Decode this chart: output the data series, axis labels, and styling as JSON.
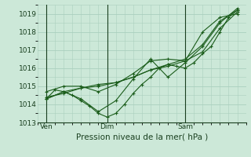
{
  "xlabel": "Pression niveau de la mer( hPa )",
  "bg_color": "#cce8d8",
  "grid_color": "#aacfbe",
  "line_color": "#1a5c1a",
  "dark_line_color": "#1a4020",
  "ylim": [
    1013.0,
    1019.5
  ],
  "yticks": [
    1013,
    1014,
    1015,
    1016,
    1017,
    1018,
    1019
  ],
  "xlim": [
    0,
    24
  ],
  "xtick_labels": [
    "Ven",
    "Dim",
    "Sam"
  ],
  "xtick_pos": [
    1,
    8,
    17
  ],
  "vline_pos": [
    1,
    8,
    17
  ],
  "series": [
    {
      "x": [
        1,
        2,
        3,
        4,
        5,
        6,
        7,
        8,
        9,
        10,
        11,
        12,
        13,
        14,
        15,
        16,
        17,
        18,
        19,
        20,
        21,
        22,
        23
      ],
      "y": [
        1014.3,
        1014.8,
        1014.7,
        1014.5,
        1014.2,
        1013.9,
        1013.5,
        1013.3,
        1013.5,
        1014.0,
        1014.6,
        1015.1,
        1015.5,
        1016.0,
        1016.2,
        1016.1,
        1016.0,
        1016.3,
        1016.8,
        1017.2,
        1018.0,
        1018.8,
        1019.2
      ]
    },
    {
      "x": [
        1,
        3,
        5,
        7,
        9,
        11,
        13,
        15,
        17,
        19,
        21,
        23
      ],
      "y": [
        1014.3,
        1014.7,
        1014.3,
        1013.6,
        1014.2,
        1015.4,
        1016.5,
        1015.5,
        1016.3,
        1017.2,
        1018.5,
        1019.3
      ]
    },
    {
      "x": [
        1,
        3,
        5,
        7,
        9,
        11,
        13,
        15,
        17,
        19,
        21,
        23
      ],
      "y": [
        1014.7,
        1015.0,
        1015.0,
        1014.7,
        1015.1,
        1015.7,
        1016.4,
        1016.5,
        1016.4,
        1018.0,
        1018.8,
        1019.0
      ]
    },
    {
      "x": [
        1,
        3,
        5,
        7,
        9,
        11,
        13,
        15,
        17,
        19,
        21,
        23
      ],
      "y": [
        1014.3,
        1014.7,
        1014.9,
        1015.1,
        1015.2,
        1015.5,
        1015.9,
        1016.2,
        1016.5,
        1017.3,
        1018.6,
        1019.2
      ]
    },
    {
      "x": [
        1,
        3,
        5,
        7,
        9,
        11,
        13,
        15,
        17,
        19,
        21,
        23
      ],
      "y": [
        1014.4,
        1014.6,
        1014.9,
        1015.0,
        1015.2,
        1015.5,
        1015.9,
        1016.1,
        1016.4,
        1016.9,
        1018.2,
        1019.1
      ]
    }
  ]
}
